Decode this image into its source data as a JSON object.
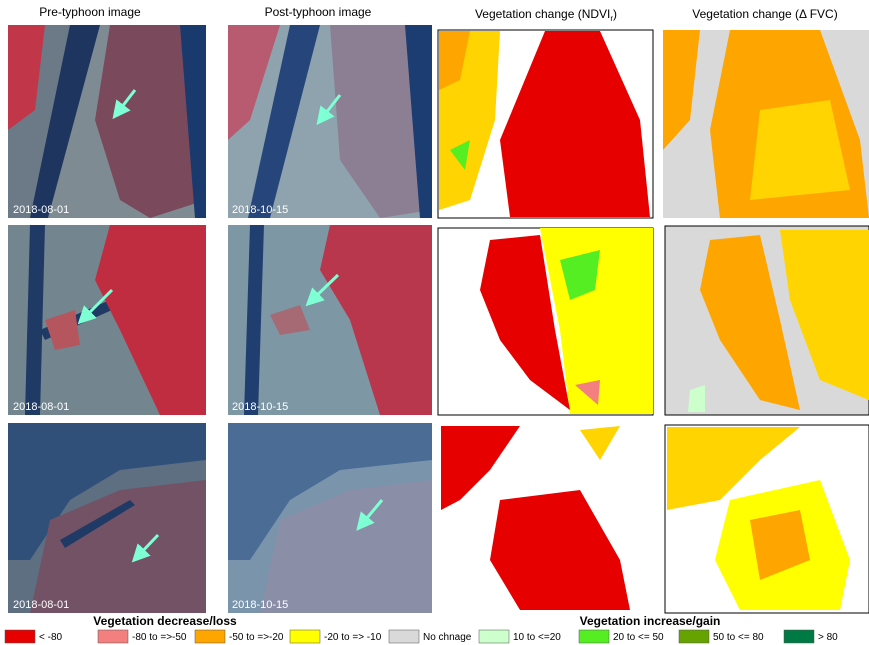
{
  "columns": [
    {
      "title": "Pre-typhoon image"
    },
    {
      "title": "Post-typhoon image"
    },
    {
      "title_parts": [
        "Vegetation change (NDVI",
        "r",
        ")"
      ]
    },
    {
      "title": "Vegetation change (Δ FVC)"
    }
  ],
  "rows": [
    {
      "pre_date": "2018-08-01",
      "post_date": "2018-10-15"
    },
    {
      "pre_date": "2018-08-01",
      "post_date": "2018-10-15"
    },
    {
      "pre_date": "2018-08-01",
      "post_date": "2018-10-15"
    }
  ],
  "legend": {
    "decrease_header": "Vegetation decrease/loss",
    "increase_header": "Vegetation increase/gain",
    "items": [
      {
        "label": "< -80",
        "color": "#e60000"
      },
      {
        "label": "-80 to =>-50",
        "color": "#f47f7f"
      },
      {
        "label": "-50 to =>-20",
        "color": "#ffa500"
      },
      {
        "label": "-20 to => -10",
        "color": "#ffff00"
      },
      {
        "label": "No chnage",
        "color": "#d9d9d9"
      },
      {
        "label": "10 to  <=20",
        "color": "#ccffcc"
      },
      {
        "label": "20 to <= 50",
        "color": "#55ee22"
      },
      {
        "label": "50 to <= 80",
        "color": "#66a300"
      },
      {
        "label": "> 80",
        "color": "#007a45"
      }
    ]
  }
}
